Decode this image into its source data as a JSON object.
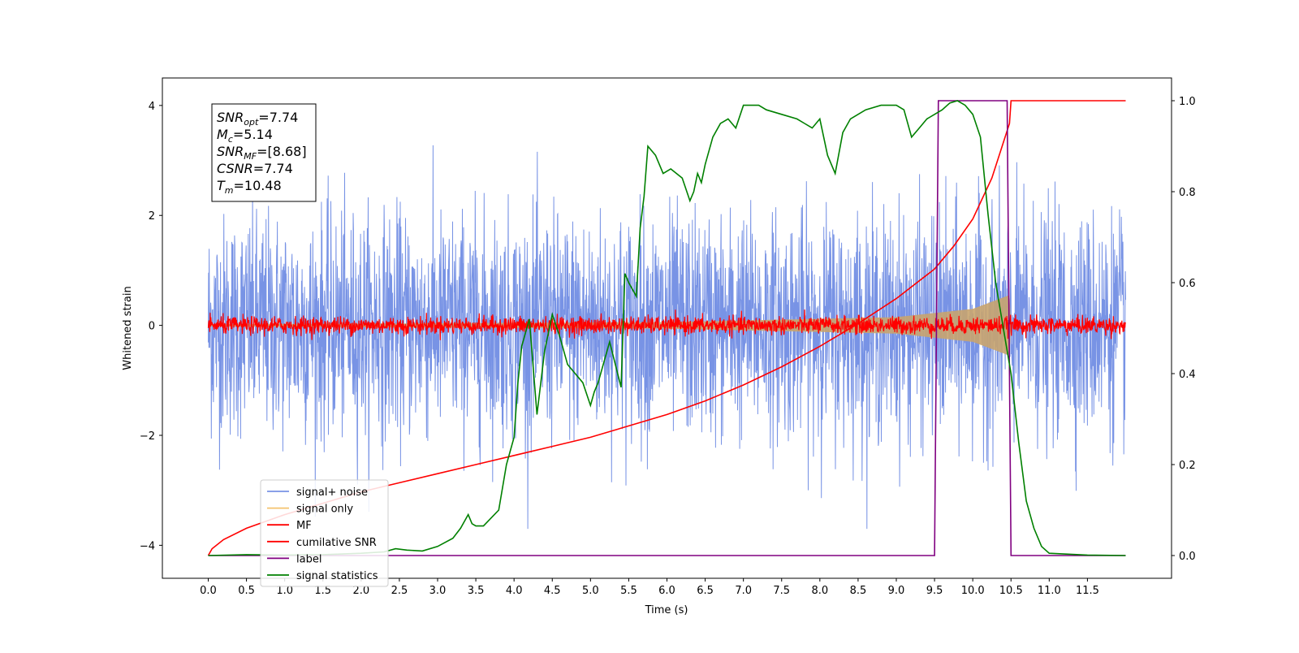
{
  "chart_data": {
    "type": "line",
    "xlabel": "Time (s)",
    "ylabel_left": "Whitened strain",
    "ylabel_right": "",
    "xlim": [
      -0.6,
      12.6
    ],
    "ylim_left": [
      -4.6,
      4.5
    ],
    "ylim_right": [
      -0.05,
      1.05
    ],
    "x_ticks": [
      "0.0",
      "0.5",
      "1.0",
      "1.5",
      "2.0",
      "2.5",
      "3.0",
      "3.5",
      "4.0",
      "4.5",
      "5.0",
      "5.5",
      "6.0",
      "6.5",
      "7.0",
      "7.5",
      "8.0",
      "8.5",
      "9.0",
      "9.5",
      "10.0",
      "10.5",
      "11.0",
      "11.5"
    ],
    "y_ticks_left": [
      "−4",
      "−2",
      "0",
      "2",
      "4"
    ],
    "y_ticks_right": [
      "0.0",
      "0.2",
      "0.4",
      "0.6",
      "0.8",
      "1.0"
    ],
    "grid": false,
    "legend_position": "lower-left",
    "annotation": {
      "lines": [
        {
          "main": "SNR",
          "sub": "opt",
          "rest": "=7.74"
        },
        {
          "main": "M",
          "sub": "c",
          "rest": "=5.14"
        },
        {
          "main": "SNR",
          "sub": "MF",
          "rest": "=[8.68]"
        },
        {
          "main": "CSNR",
          "sub": "",
          "rest": "=7.74"
        },
        {
          "main": "T",
          "sub": "m",
          "rest": "=10.48"
        }
      ]
    },
    "series": [
      {
        "name": "signal+ noise",
        "color": "#7893e5",
        "axis": "left",
        "kind": "noise",
        "amplitude": 1.0,
        "x_range": [
          0.0,
          12.0
        ]
      },
      {
        "name": "signal only",
        "color": "#f5c36e",
        "axis": "left",
        "kind": "chirp",
        "envelope": [
          [
            0.0,
            0.02
          ],
          [
            6.0,
            0.06
          ],
          [
            9.0,
            0.15
          ],
          [
            10.0,
            0.3
          ],
          [
            10.48,
            0.55
          ],
          [
            10.5,
            0.0
          ]
        ]
      },
      {
        "name": "MF",
        "color": "#ff0000",
        "axis": "left",
        "kind": "noise",
        "amplitude": 0.08,
        "x_range": [
          0.0,
          12.0
        ]
      },
      {
        "name": "cumilative SNR",
        "color": "#ff0000",
        "axis": "right",
        "kind": "line",
        "x": [
          0.0,
          0.05,
          0.2,
          0.5,
          1.0,
          1.5,
          2.0,
          2.5,
          3.0,
          3.5,
          4.0,
          4.5,
          5.0,
          5.5,
          6.0,
          6.5,
          7.0,
          7.5,
          8.0,
          8.5,
          9.0,
          9.5,
          9.75,
          10.0,
          10.25,
          10.48,
          10.5,
          12.0
        ],
        "y": [
          0.0,
          0.015,
          0.035,
          0.06,
          0.09,
          0.115,
          0.14,
          0.16,
          0.18,
          0.2,
          0.22,
          0.24,
          0.26,
          0.285,
          0.31,
          0.34,
          0.375,
          0.415,
          0.46,
          0.51,
          0.565,
          0.63,
          0.68,
          0.74,
          0.83,
          0.95,
          1.0,
          1.0
        ]
      },
      {
        "name": "label",
        "color": "#800080",
        "axis": "right",
        "kind": "line",
        "x": [
          0.0,
          9.5,
          9.55,
          10.45,
          10.5,
          12.0
        ],
        "y": [
          0.0,
          0.0,
          1.0,
          1.0,
          0.0,
          0.0
        ]
      },
      {
        "name": "signal statistics",
        "color": "#008000",
        "axis": "right",
        "kind": "line",
        "x": [
          0.0,
          0.5,
          1.0,
          1.5,
          2.0,
          2.3,
          2.45,
          2.6,
          2.8,
          3.0,
          3.2,
          3.3,
          3.35,
          3.4,
          3.45,
          3.5,
          3.6,
          3.8,
          3.9,
          4.0,
          4.05,
          4.1,
          4.2,
          4.3,
          4.4,
          4.5,
          4.6,
          4.7,
          4.8,
          4.9,
          5.0,
          5.05,
          5.1,
          5.25,
          5.4,
          5.45,
          5.5,
          5.6,
          5.65,
          5.7,
          5.75,
          5.85,
          5.95,
          6.05,
          6.2,
          6.3,
          6.35,
          6.4,
          6.45,
          6.5,
          6.6,
          6.7,
          6.8,
          6.9,
          7.0,
          7.2,
          7.3,
          7.5,
          7.7,
          7.8,
          7.9,
          8.0,
          8.1,
          8.2,
          8.3,
          8.4,
          8.5,
          8.6,
          8.8,
          9.0,
          9.1,
          9.2,
          9.3,
          9.4,
          9.5,
          9.6,
          9.7,
          9.8,
          9.9,
          10.0,
          10.1,
          10.2,
          10.3,
          10.4,
          10.5,
          10.6,
          10.7,
          10.8,
          10.9,
          11.0,
          11.5,
          12.0
        ],
        "y": [
          0.0,
          0.002,
          0.001,
          0.002,
          0.005,
          0.008,
          0.015,
          0.012,
          0.01,
          0.02,
          0.038,
          0.06,
          0.075,
          0.09,
          0.07,
          0.065,
          0.065,
          0.1,
          0.2,
          0.26,
          0.38,
          0.46,
          0.52,
          0.31,
          0.45,
          0.53,
          0.48,
          0.42,
          0.4,
          0.38,
          0.33,
          0.36,
          0.38,
          0.47,
          0.37,
          0.62,
          0.6,
          0.57,
          0.72,
          0.79,
          0.9,
          0.88,
          0.84,
          0.85,
          0.83,
          0.78,
          0.8,
          0.84,
          0.82,
          0.86,
          0.92,
          0.95,
          0.96,
          0.94,
          0.99,
          0.99,
          0.98,
          0.97,
          0.96,
          0.95,
          0.94,
          0.96,
          0.88,
          0.84,
          0.93,
          0.96,
          0.97,
          0.98,
          0.99,
          0.99,
          0.98,
          0.92,
          0.94,
          0.96,
          0.97,
          0.98,
          0.995,
          1.0,
          0.99,
          0.97,
          0.92,
          0.75,
          0.6,
          0.5,
          0.4,
          0.25,
          0.12,
          0.06,
          0.02,
          0.005,
          0.001,
          0.0
        ]
      }
    ]
  }
}
